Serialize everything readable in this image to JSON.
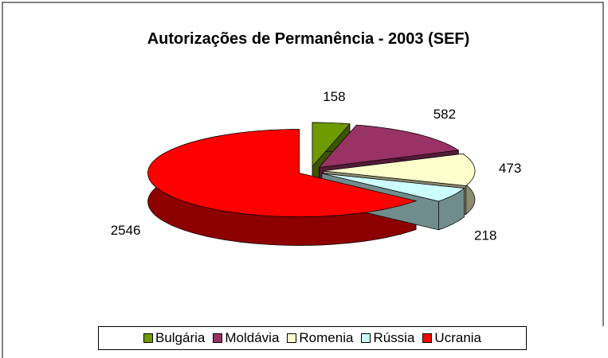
{
  "chart_data": {
    "type": "pie3d",
    "title": "Autorizações de Permanência - 2003 (SEF)",
    "categories": [
      "Bulgária",
      "Moldávia",
      "Romenia",
      "Rússia",
      "Ucrania"
    ],
    "values": [
      158,
      582,
      473,
      218,
      2546
    ],
    "colors": [
      "#6f9a00",
      "#993366",
      "#ffffcc",
      "#ccffff",
      "#ff0000"
    ],
    "legend": "bottom"
  }
}
